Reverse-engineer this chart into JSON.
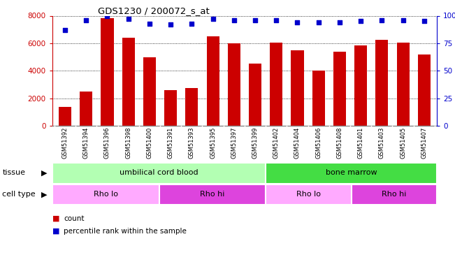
{
  "title": "GDS1230 / 200072_s_at",
  "samples": [
    "GSM51392",
    "GSM51394",
    "GSM51396",
    "GSM51398",
    "GSM51400",
    "GSM51391",
    "GSM51393",
    "GSM51395",
    "GSM51397",
    "GSM51399",
    "GSM51402",
    "GSM51404",
    "GSM51406",
    "GSM51408",
    "GSM51401",
    "GSM51403",
    "GSM51405",
    "GSM51407"
  ],
  "bar_values": [
    1350,
    2500,
    7800,
    6400,
    5000,
    2600,
    2750,
    6500,
    6000,
    4500,
    6050,
    5500,
    4000,
    5400,
    5850,
    6250,
    6050,
    5200
  ],
  "percentile_values": [
    87,
    96,
    100,
    97,
    93,
    92,
    93,
    97,
    96,
    96,
    96,
    94,
    94,
    94,
    95,
    96,
    96,
    95
  ],
  "bar_color": "#cc0000",
  "dot_color": "#0000cc",
  "ylim_left": [
    0,
    8000
  ],
  "ylim_right": [
    0,
    100
  ],
  "yticks_left": [
    0,
    2000,
    4000,
    6000,
    8000
  ],
  "yticks_right": [
    0,
    25,
    50,
    75,
    100
  ],
  "ytick_labels_right": [
    "0",
    "25",
    "50",
    "75",
    "100%"
  ],
  "tissue_groups": [
    {
      "label": "umbilical cord blood",
      "start": 0,
      "end": 10,
      "color": "#b3ffb3"
    },
    {
      "label": "bone marrow",
      "start": 10,
      "end": 18,
      "color": "#44dd44"
    }
  ],
  "cell_type_groups": [
    {
      "label": "Rho lo",
      "start": 0,
      "end": 5,
      "color": "#ffaaff"
    },
    {
      "label": "Rho hi",
      "start": 5,
      "end": 10,
      "color": "#dd44dd"
    },
    {
      "label": "Rho lo",
      "start": 10,
      "end": 14,
      "color": "#ffaaff"
    },
    {
      "label": "Rho hi",
      "start": 14,
      "end": 18,
      "color": "#dd44dd"
    }
  ],
  "background_color": "#ffffff",
  "left_axis_color": "#cc0000",
  "right_axis_color": "#0000cc",
  "tissue_label": "tissue",
  "cell_type_label": "cell type",
  "xticklabel_bg": "#d8d8d8"
}
